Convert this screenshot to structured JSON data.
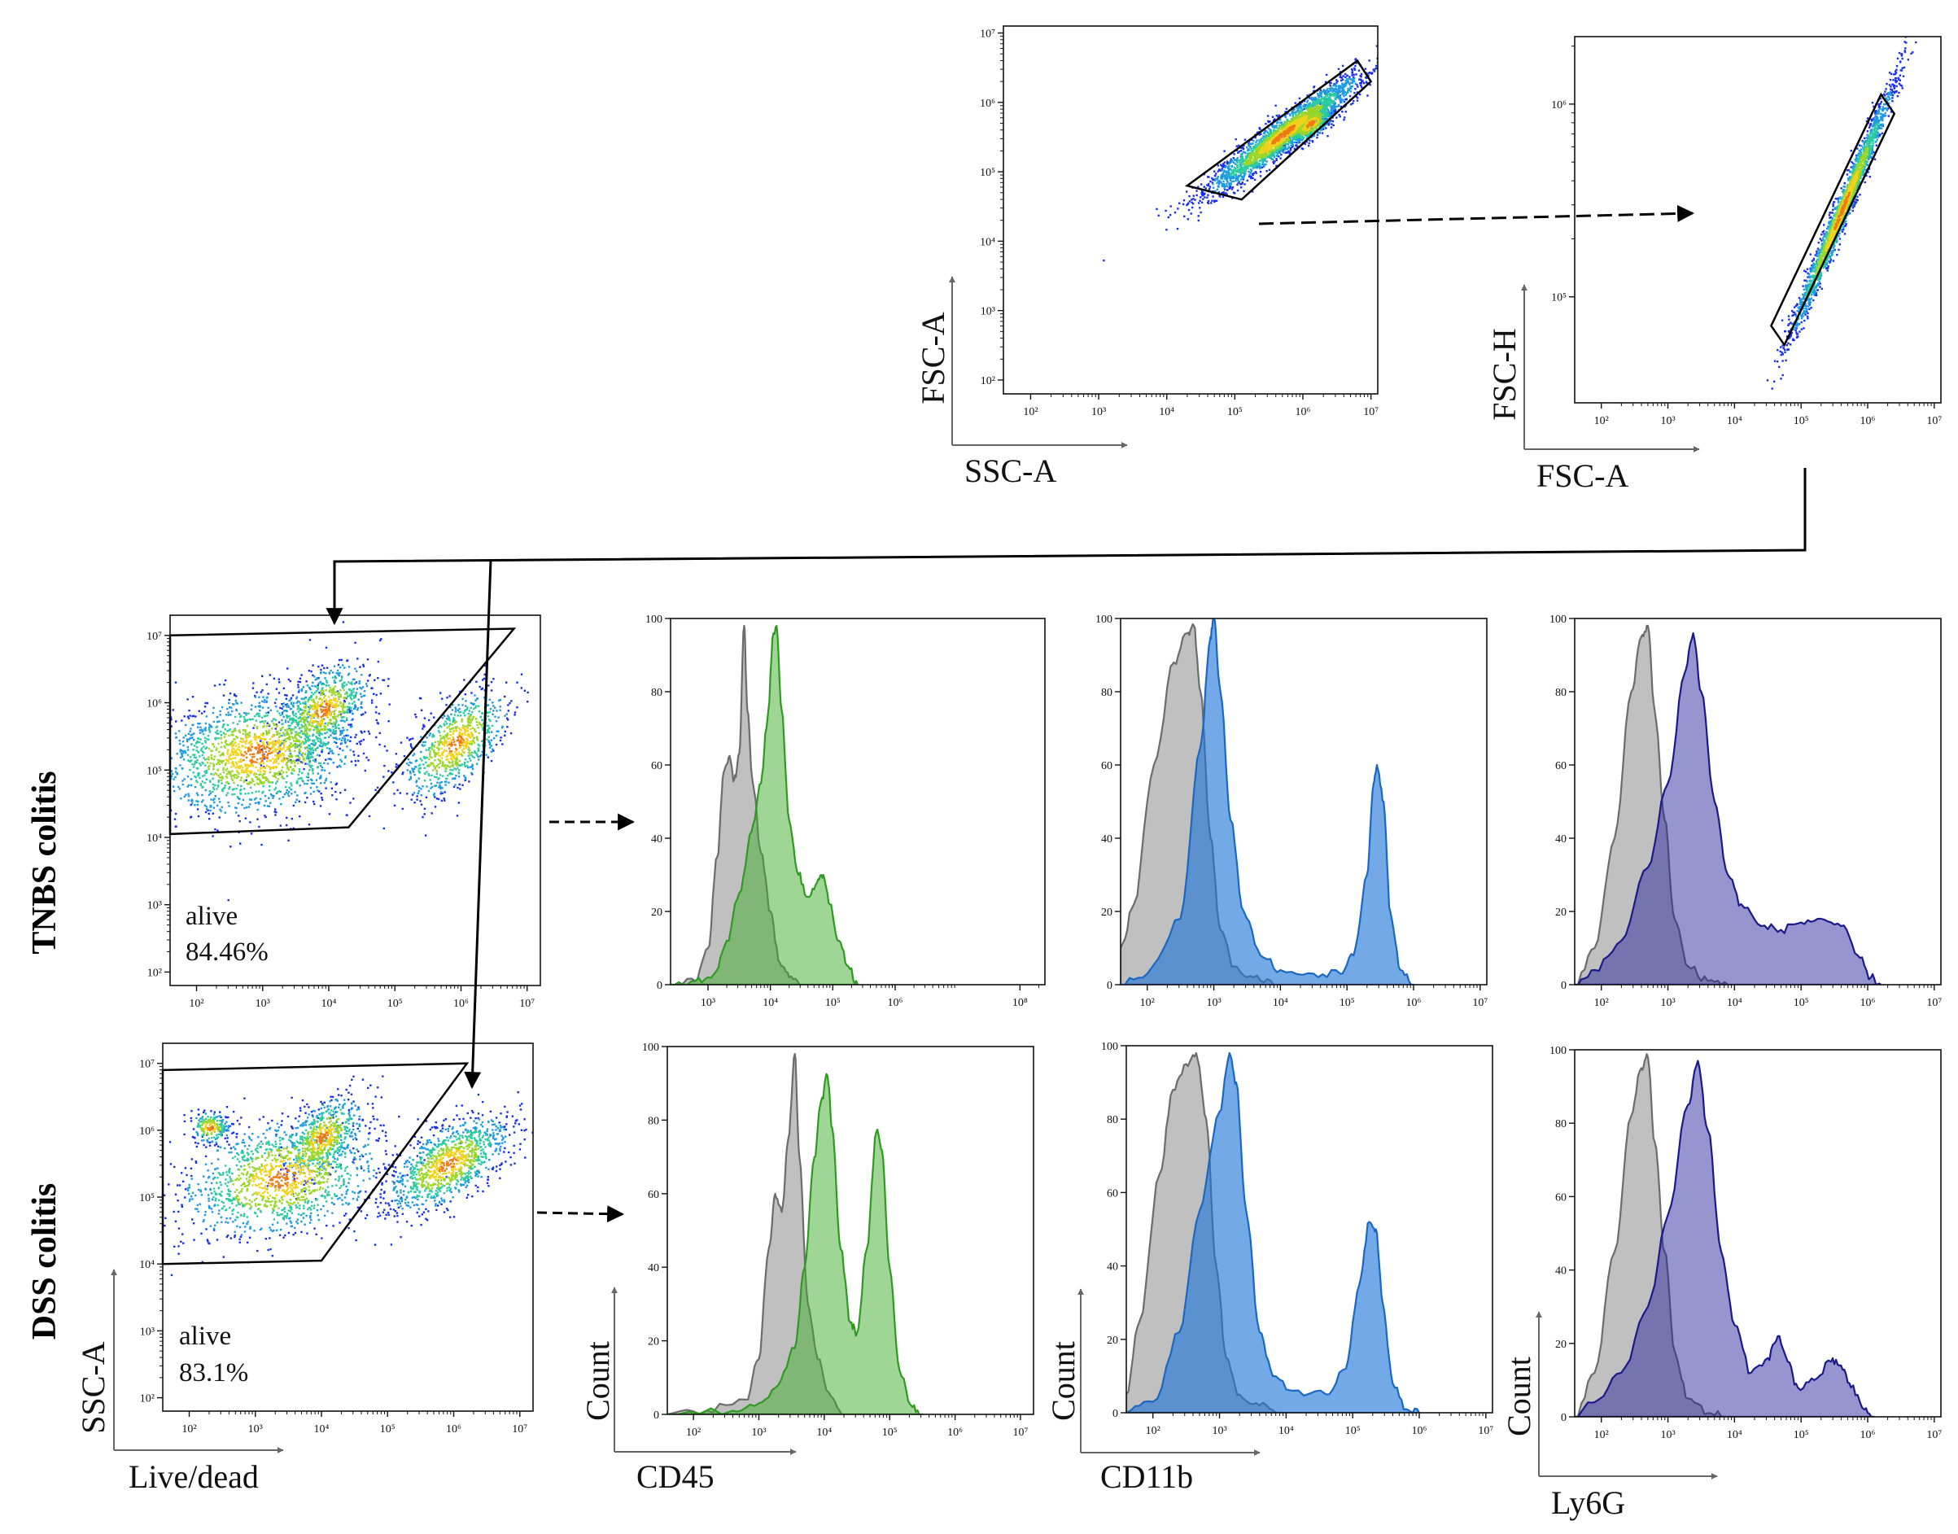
{
  "row_labels": {
    "tnbs": "TNBS colitis",
    "dss": "DSS colitis"
  },
  "colors": {
    "dot": "#1a2fe8",
    "grey": "#8c8c8c",
    "cd45": "#3fae2e",
    "cd11b": "#1d74d6",
    "ly6g": "#23229a"
  },
  "chart_data": [
    {
      "id": "ssc-fsc",
      "type": "scatter",
      "xlabel": "SSC-A",
      "ylabel": "FSC-A",
      "x_ticks": [
        "10²",
        "10³",
        "10⁴",
        "10⁵",
        "10⁶",
        "10⁷"
      ],
      "y_ticks": [
        "10²",
        "10³",
        "10⁴",
        "10⁵",
        "10⁶",
        "10⁷"
      ],
      "xlim_log": [
        1.6,
        7.1
      ],
      "ylim_log": [
        1.8,
        7.1
      ],
      "gate": [
        [
          4.3,
          4.8
        ],
        [
          6.8,
          6.6
        ],
        [
          7.0,
          6.3
        ],
        [
          5.1,
          4.6
        ]
      ]
    },
    {
      "id": "fsca-fsch",
      "type": "scatter",
      "xlabel": "FSC-A",
      "ylabel": "FSC-H",
      "x_ticks": [
        "10²",
        "10³",
        "10⁴",
        "10⁵",
        "10⁶",
        "10⁷"
      ],
      "y_ticks": [
        "10⁵",
        "10⁶"
      ],
      "xlim_log": [
        1.6,
        7.1
      ],
      "ylim_log": [
        4.45,
        6.35
      ],
      "gate": [
        [
          4.55,
          4.85
        ],
        [
          6.2,
          6.05
        ],
        [
          6.4,
          5.95
        ],
        [
          4.75,
          4.75
        ]
      ]
    },
    {
      "id": "tnbs-live",
      "type": "scatter",
      "xlabel": "",
      "ylabel": "",
      "x_ticks": [
        "10²",
        "10³",
        "10⁴",
        "10⁵",
        "10⁶",
        "10⁷"
      ],
      "y_ticks": [
        "10²",
        "10³",
        "10⁴",
        "10⁵",
        "10⁶",
        "10⁷"
      ],
      "xlim_log": [
        1.6,
        7.2
      ],
      "ylim_log": [
        1.8,
        7.3
      ],
      "gate": [
        [
          1.6,
          7.0
        ],
        [
          6.8,
          7.1
        ],
        [
          4.3,
          4.15
        ],
        [
          1.6,
          4.05
        ]
      ],
      "annotation": {
        "label": "alive",
        "value": "84.46%"
      }
    },
    {
      "id": "dss-live",
      "type": "scatter",
      "xlabel": "Live/dead",
      "ylabel": "SSC-A",
      "x_ticks": [
        "10²",
        "10³",
        "10⁴",
        "10⁵",
        "10⁶",
        "10⁷"
      ],
      "y_ticks": [
        "10²",
        "10³",
        "10⁴",
        "10⁵",
        "10⁶",
        "10⁷"
      ],
      "xlim_log": [
        1.6,
        7.2
      ],
      "ylim_log": [
        1.8,
        7.3
      ],
      "gate": [
        [
          1.6,
          6.9
        ],
        [
          6.2,
          7.0
        ],
        [
          4.0,
          4.05
        ],
        [
          1.6,
          4.0
        ]
      ],
      "annotation": {
        "label": "alive",
        "value": "83.1%"
      }
    },
    {
      "id": "tnbs-cd45",
      "type": "area",
      "xlabel": "",
      "ylabel": "",
      "x_ticks": [
        "10³",
        "10⁴",
        "10⁵",
        "10⁶",
        "10⁸"
      ],
      "y_ticks": [
        "0",
        "20",
        "40",
        "60",
        "80",
        "100"
      ],
      "xlim_log": [
        2.4,
        8.4
      ],
      "ylim": [
        0,
        100
      ],
      "series": [
        {
          "role": "grey",
          "points": [
            [
              2.4,
              0
            ],
            [
              2.8,
              1
            ],
            [
              3.0,
              10
            ],
            [
              3.15,
              35
            ],
            [
              3.25,
              58
            ],
            [
              3.33,
              62
            ],
            [
              3.42,
              56
            ],
            [
              3.5,
              63
            ],
            [
              3.58,
              98
            ],
            [
              3.63,
              75
            ],
            [
              3.72,
              55
            ],
            [
              3.85,
              36
            ],
            [
              4.0,
              20
            ],
            [
              4.15,
              6
            ],
            [
              4.3,
              2
            ],
            [
              4.5,
              0
            ]
          ]
        },
        {
          "role": "cd45",
          "points": [
            [
              2.4,
              0
            ],
            [
              2.8,
              1
            ],
            [
              3.1,
              3
            ],
            [
              3.3,
              12
            ],
            [
              3.5,
              25
            ],
            [
              3.7,
              42
            ],
            [
              3.85,
              55
            ],
            [
              3.95,
              72
            ],
            [
              4.05,
              96
            ],
            [
              4.1,
              98
            ],
            [
              4.18,
              75
            ],
            [
              4.3,
              45
            ],
            [
              4.45,
              30
            ],
            [
              4.6,
              24
            ],
            [
              4.75,
              28
            ],
            [
              4.85,
              30
            ],
            [
              4.95,
              22
            ],
            [
              5.1,
              12
            ],
            [
              5.25,
              5
            ],
            [
              5.4,
              0
            ]
          ]
        }
      ]
    },
    {
      "id": "dss-cd45",
      "type": "area",
      "xlabel": "CD45",
      "ylabel": "Count",
      "x_ticks": [
        "10²",
        "10³",
        "10⁴",
        "10⁵",
        "10⁶",
        "10⁷"
      ],
      "y_ticks": [
        "0",
        "20",
        "40",
        "60",
        "80",
        "100"
      ],
      "xlim_log": [
        1.6,
        7.2
      ],
      "ylim": [
        0,
        100
      ],
      "series": [
        {
          "role": "grey",
          "points": [
            [
              1.6,
              0
            ],
            [
              2.2,
              1
            ],
            [
              2.8,
              4
            ],
            [
              3.0,
              15
            ],
            [
              3.15,
              45
            ],
            [
              3.25,
              60
            ],
            [
              3.35,
              55
            ],
            [
              3.45,
              75
            ],
            [
              3.55,
              98
            ],
            [
              3.62,
              70
            ],
            [
              3.75,
              30
            ],
            [
              3.9,
              15
            ],
            [
              4.1,
              5
            ],
            [
              4.3,
              0
            ]
          ]
        },
        {
          "role": "cd45",
          "points": [
            [
              1.6,
              0
            ],
            [
              2.6,
              1
            ],
            [
              3.0,
              3
            ],
            [
              3.3,
              8
            ],
            [
              3.55,
              18
            ],
            [
              3.7,
              40
            ],
            [
              3.85,
              70
            ],
            [
              3.95,
              85
            ],
            [
              4.05,
              92
            ],
            [
              4.12,
              78
            ],
            [
              4.25,
              45
            ],
            [
              4.4,
              25
            ],
            [
              4.5,
              22
            ],
            [
              4.65,
              45
            ],
            [
              4.8,
              77
            ],
            [
              4.88,
              72
            ],
            [
              5.0,
              40
            ],
            [
              5.15,
              12
            ],
            [
              5.35,
              2
            ],
            [
              5.5,
              0
            ]
          ]
        }
      ]
    },
    {
      "id": "tnbs-cd11b",
      "type": "area",
      "xlabel": "",
      "ylabel": "",
      "x_ticks": [
        "10²",
        "10³",
        "10⁴",
        "10⁵",
        "10⁶",
        "10⁷"
      ],
      "y_ticks": [
        "0",
        "20",
        "40",
        "60",
        "80",
        "100"
      ],
      "xlim_log": [
        1.6,
        7.1
      ],
      "ylim": [
        0,
        100
      ],
      "series": [
        {
          "role": "grey",
          "points": [
            [
              1.6,
              10
            ],
            [
              1.8,
              22
            ],
            [
              2.1,
              60
            ],
            [
              2.4,
              88
            ],
            [
              2.6,
              96
            ],
            [
              2.7,
              98
            ],
            [
              2.8,
              80
            ],
            [
              2.95,
              40
            ],
            [
              3.1,
              15
            ],
            [
              3.3,
              5
            ],
            [
              3.6,
              2
            ],
            [
              3.9,
              0
            ]
          ]
        },
        {
          "role": "cd11b",
          "points": [
            [
              1.6,
              0
            ],
            [
              2.0,
              3
            ],
            [
              2.5,
              18
            ],
            [
              2.8,
              65
            ],
            [
              2.95,
              95
            ],
            [
              3.0,
              100
            ],
            [
              3.1,
              80
            ],
            [
              3.25,
              45
            ],
            [
              3.45,
              20
            ],
            [
              3.7,
              8
            ],
            [
              4.0,
              4
            ],
            [
              4.5,
              3
            ],
            [
              4.9,
              3
            ],
            [
              5.1,
              8
            ],
            [
              5.3,
              30
            ],
            [
              5.4,
              55
            ],
            [
              5.45,
              60
            ],
            [
              5.55,
              50
            ],
            [
              5.65,
              20
            ],
            [
              5.8,
              4
            ],
            [
              6.0,
              0
            ]
          ]
        }
      ]
    },
    {
      "id": "dss-cd11b",
      "type": "area",
      "xlabel": "CD11b",
      "ylabel": "Count",
      "x_ticks": [
        "10²",
        "10³",
        "10⁴",
        "10⁵",
        "10⁶",
        "10⁷"
      ],
      "y_ticks": [
        "0",
        "20",
        "40",
        "60",
        "80",
        "100"
      ],
      "xlim_log": [
        1.6,
        7.1
      ],
      "ylim": [
        0,
        100
      ],
      "series": [
        {
          "role": "grey",
          "points": [
            [
              1.6,
              5
            ],
            [
              1.8,
              25
            ],
            [
              2.1,
              65
            ],
            [
              2.3,
              88
            ],
            [
              2.5,
              95
            ],
            [
              2.65,
              98
            ],
            [
              2.8,
              80
            ],
            [
              2.95,
              40
            ],
            [
              3.1,
              15
            ],
            [
              3.3,
              5
            ],
            [
              3.6,
              2
            ],
            [
              3.9,
              0
            ]
          ]
        },
        {
          "role": "cd11b",
          "points": [
            [
              1.6,
              0
            ],
            [
              2.0,
              3
            ],
            [
              2.4,
              22
            ],
            [
              2.7,
              55
            ],
            [
              3.0,
              82
            ],
            [
              3.15,
              98
            ],
            [
              3.25,
              90
            ],
            [
              3.4,
              55
            ],
            [
              3.6,
              22
            ],
            [
              3.8,
              10
            ],
            [
              4.1,
              6
            ],
            [
              4.6,
              5
            ],
            [
              4.9,
              12
            ],
            [
              5.1,
              35
            ],
            [
              5.25,
              52
            ],
            [
              5.35,
              50
            ],
            [
              5.45,
              30
            ],
            [
              5.6,
              8
            ],
            [
              5.8,
              1
            ],
            [
              6.0,
              0
            ]
          ]
        }
      ]
    },
    {
      "id": "tnbs-ly6g",
      "type": "area",
      "xlabel": "",
      "ylabel": "",
      "x_ticks": [
        "10²",
        "10³",
        "10⁴",
        "10⁵",
        "10⁶",
        "10⁷"
      ],
      "y_ticks": [
        "0",
        "20",
        "40",
        "60",
        "80",
        "100"
      ],
      "xlim_log": [
        1.6,
        7.1
      ],
      "ylim": [
        0,
        100
      ],
      "series": [
        {
          "role": "grey",
          "points": [
            [
              1.6,
              0
            ],
            [
              1.9,
              10
            ],
            [
              2.2,
              40
            ],
            [
              2.45,
              80
            ],
            [
              2.6,
              95
            ],
            [
              2.7,
              98
            ],
            [
              2.8,
              75
            ],
            [
              2.95,
              45
            ],
            [
              3.1,
              18
            ],
            [
              3.3,
              5
            ],
            [
              3.6,
              1
            ],
            [
              3.9,
              0
            ]
          ]
        },
        {
          "role": "ly6g",
          "points": [
            [
              1.6,
              0
            ],
            [
              1.9,
              4
            ],
            [
              2.3,
              12
            ],
            [
              2.7,
              32
            ],
            [
              3.0,
              55
            ],
            [
              3.25,
              85
            ],
            [
              3.38,
              96
            ],
            [
              3.5,
              80
            ],
            [
              3.7,
              50
            ],
            [
              3.9,
              30
            ],
            [
              4.1,
              22
            ],
            [
              4.4,
              16
            ],
            [
              4.7,
              15
            ],
            [
              5.0,
              17
            ],
            [
              5.3,
              18
            ],
            [
              5.6,
              16
            ],
            [
              5.85,
              8
            ],
            [
              6.05,
              2
            ],
            [
              6.2,
              0
            ]
          ]
        }
      ]
    },
    {
      "id": "dss-ly6g",
      "type": "area",
      "xlabel": "Ly6G",
      "ylabel": "Count",
      "x_ticks": [
        "10²",
        "10³",
        "10⁴",
        "10⁵",
        "10⁶",
        "10⁷"
      ],
      "y_ticks": [
        "0",
        "20",
        "40",
        "60",
        "80",
        "100"
      ],
      "xlim_log": [
        1.6,
        7.1
      ],
      "ylim": [
        0,
        100
      ],
      "series": [
        {
          "role": "grey",
          "points": [
            [
              1.6,
              0
            ],
            [
              1.9,
              12
            ],
            [
              2.2,
              45
            ],
            [
              2.45,
              82
            ],
            [
              2.6,
              95
            ],
            [
              2.7,
              98
            ],
            [
              2.8,
              75
            ],
            [
              2.95,
              45
            ],
            [
              3.1,
              18
            ],
            [
              3.3,
              5
            ],
            [
              3.6,
              1
            ],
            [
              3.9,
              0
            ]
          ]
        },
        {
          "role": "ly6g",
          "points": [
            [
              1.6,
              0
            ],
            [
              1.9,
              4
            ],
            [
              2.3,
              12
            ],
            [
              2.7,
              30
            ],
            [
              3.0,
              55
            ],
            [
              3.3,
              85
            ],
            [
              3.45,
              97
            ],
            [
              3.6,
              78
            ],
            [
              3.8,
              45
            ],
            [
              4.0,
              25
            ],
            [
              4.25,
              12
            ],
            [
              4.5,
              16
            ],
            [
              4.65,
              22
            ],
            [
              4.8,
              15
            ],
            [
              4.95,
              8
            ],
            [
              5.2,
              10
            ],
            [
              5.45,
              15
            ],
            [
              5.6,
              14
            ],
            [
              5.75,
              8
            ],
            [
              5.95,
              2
            ],
            [
              6.1,
              0
            ]
          ]
        }
      ]
    }
  ]
}
